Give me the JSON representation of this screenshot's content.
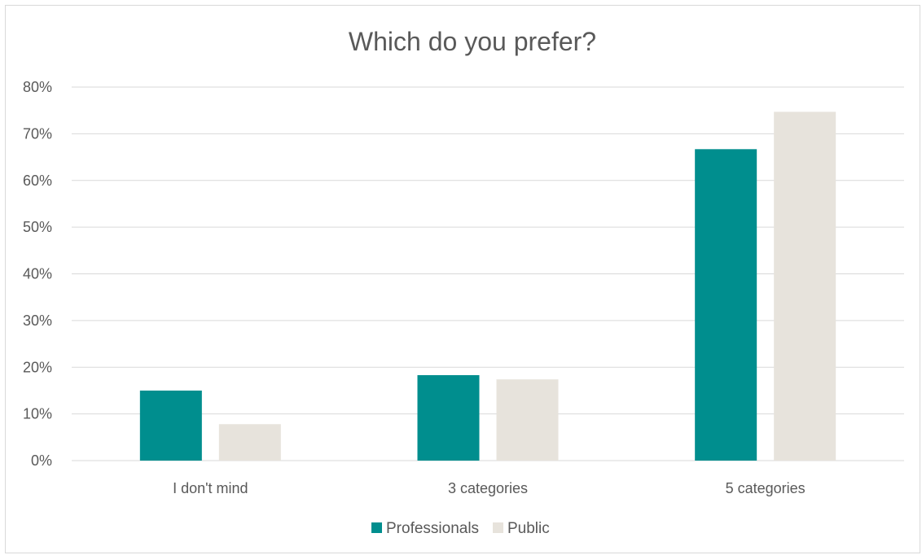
{
  "chart_data": {
    "type": "bar",
    "title": "Which do you prefer?",
    "xlabel": "",
    "ylabel": "",
    "categories": [
      "I don't mind",
      "3 categories",
      "5 categories"
    ],
    "series": [
      {
        "name": "Professionals",
        "color": "#008E8E",
        "values": [
          15,
          18.3,
          66.7
        ]
      },
      {
        "name": "Public",
        "color": "#E7E3DC",
        "values": [
          7.8,
          17.4,
          74.7
        ]
      }
    ],
    "ylim": [
      0,
      80
    ],
    "yticks": [
      0,
      10,
      20,
      30,
      40,
      50,
      60,
      70,
      80
    ],
    "ytick_labels": [
      "0%",
      "10%",
      "20%",
      "30%",
      "40%",
      "50%",
      "60%",
      "70%",
      "80%"
    ],
    "grid": true,
    "legend_position": "bottom-center"
  }
}
